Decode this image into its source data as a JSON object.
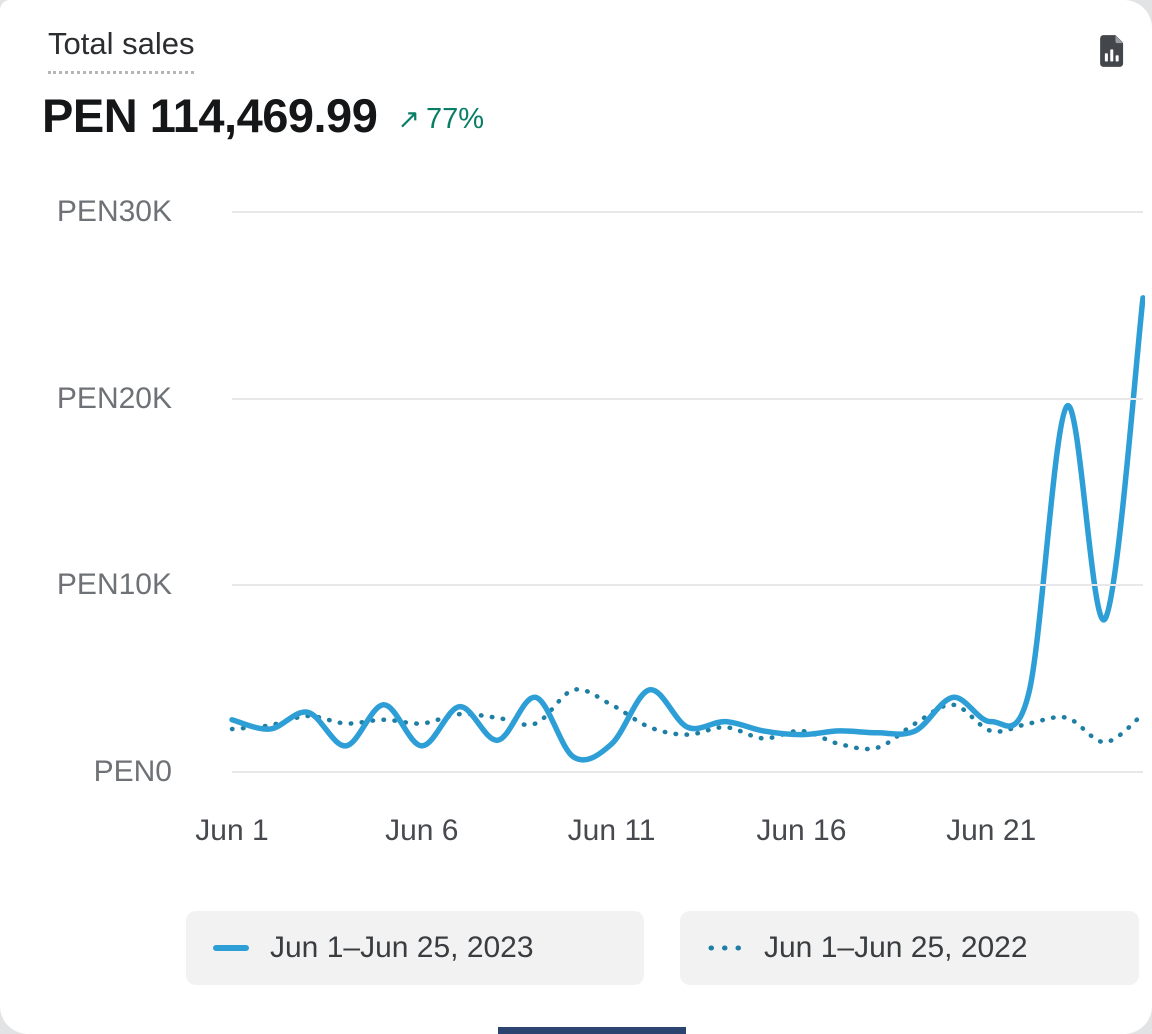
{
  "header": {
    "title": "Total sales",
    "value": "PEN 114,469.99",
    "change_arrow": "↗",
    "change_percent": "77%",
    "change_color": "#087E66"
  },
  "icons": {
    "export_report": "file-bar-chart-icon"
  },
  "chart_data": {
    "type": "line",
    "title": "Total sales",
    "currency": "PEN",
    "grid": "horizontal",
    "legend_position": "bottom",
    "ylim": [
      0,
      30000
    ],
    "x": [
      "Jun 1",
      "Jun 2",
      "Jun 3",
      "Jun 4",
      "Jun 5",
      "Jun 6",
      "Jun 7",
      "Jun 8",
      "Jun 9",
      "Jun 10",
      "Jun 11",
      "Jun 12",
      "Jun 13",
      "Jun 14",
      "Jun 15",
      "Jun 16",
      "Jun 17",
      "Jun 18",
      "Jun 19",
      "Jun 20",
      "Jun 21",
      "Jun 22",
      "Jun 23",
      "Jun 24",
      "Jun 25"
    ],
    "x_ticks": [
      {
        "label": "Jun 1",
        "index": 0
      },
      {
        "label": "Jun 6",
        "index": 5
      },
      {
        "label": "Jun 11",
        "index": 10
      },
      {
        "label": "Jun 16",
        "index": 15
      },
      {
        "label": "Jun 21",
        "index": 20
      }
    ],
    "y_ticks": [
      {
        "label": "PEN0",
        "value": 0
      },
      {
        "label": "PEN10K",
        "value": 10000
      },
      {
        "label": "PEN20K",
        "value": 20000
      },
      {
        "label": "PEN30K",
        "value": 30000
      }
    ],
    "series": [
      {
        "name": "Jun 1–Jun 25, 2023",
        "style": "solid",
        "color": "#2E9FD6",
        "values": [
          2800,
          2300,
          3200,
          1400,
          3600,
          1400,
          3500,
          1700,
          4000,
          800,
          1500,
          4400,
          2400,
          2700,
          2200,
          2000,
          2200,
          2100,
          2200,
          4000,
          2700,
          4300,
          19600,
          8200,
          25400
        ]
      },
      {
        "name": "Jun 1–Jun 25, 2022",
        "style": "dotted",
        "color": "#1F7EA3",
        "values": [
          2300,
          2500,
          3000,
          2600,
          2800,
          2600,
          3100,
          2900,
          2600,
          4400,
          3600,
          2400,
          2000,
          2400,
          1800,
          2200,
          1500,
          1300,
          2600,
          3600,
          2200,
          2600,
          2900,
          1600,
          3100
        ]
      }
    ]
  }
}
